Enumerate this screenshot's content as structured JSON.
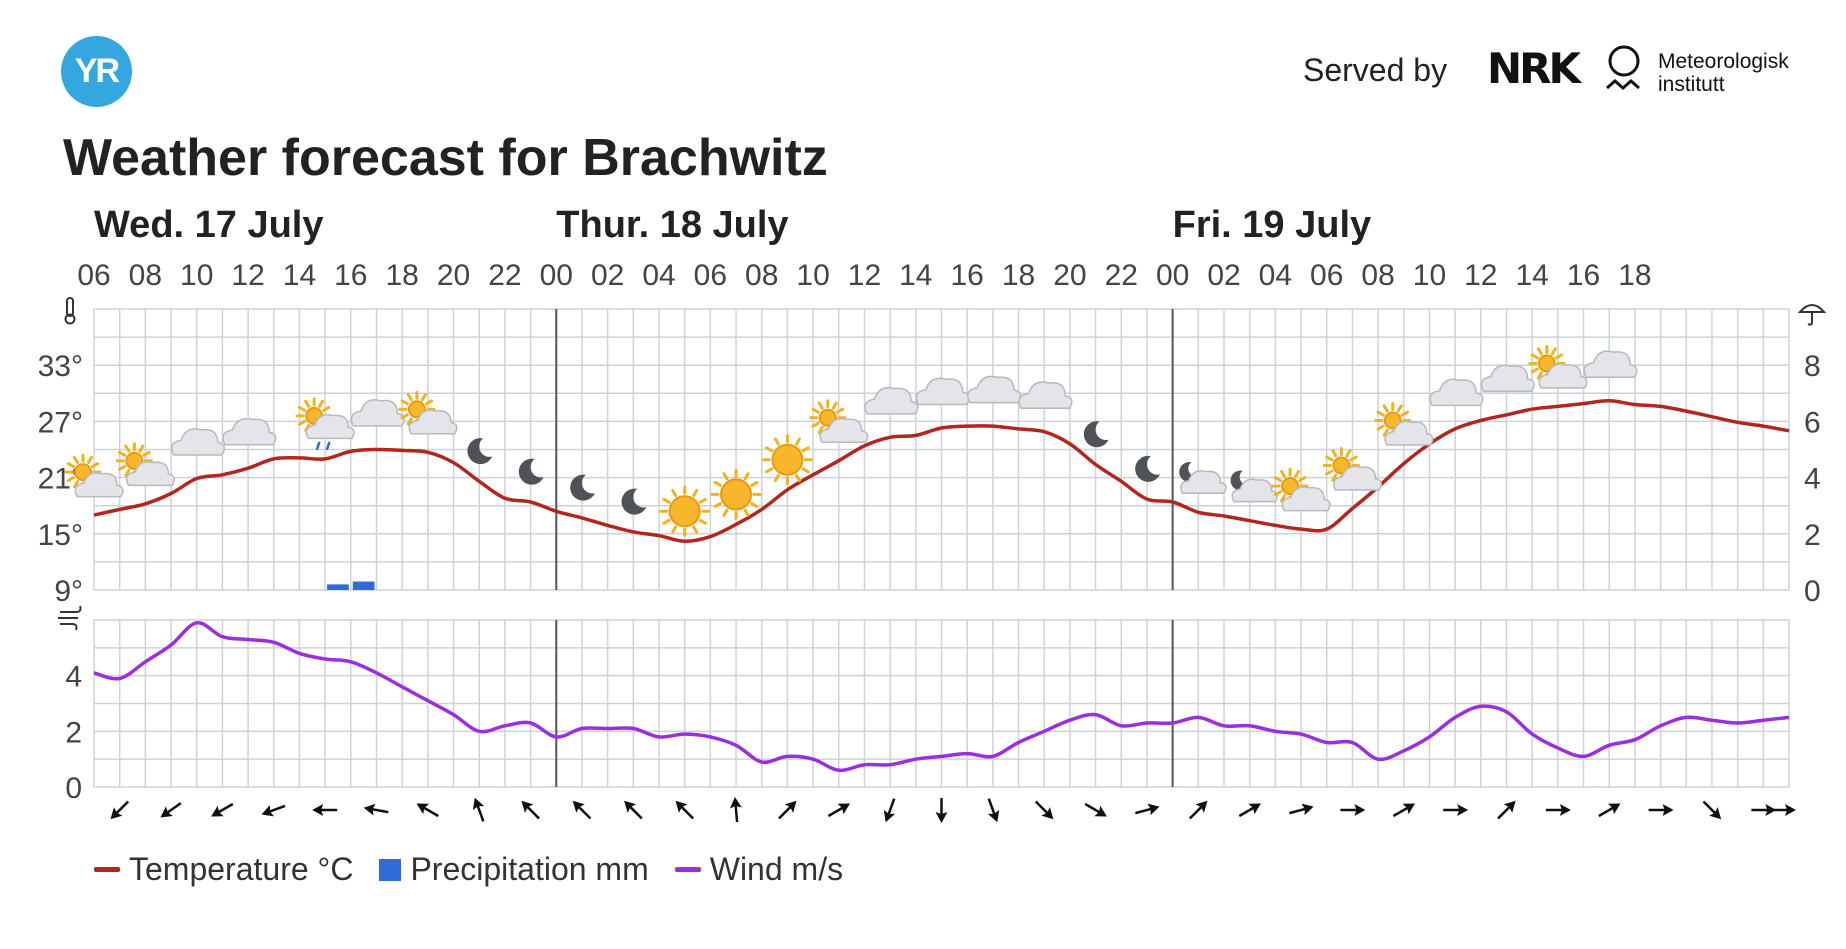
{
  "header": {
    "logo_text": "YR",
    "served_by": "Served by",
    "nrk": "NRK",
    "met_line1": "Meteorologisk",
    "met_line2": "institutt"
  },
  "title": "Weather forecast for Brachwitz",
  "legend": {
    "temperature": "Temperature °C",
    "precipitation": "Precipitation mm",
    "wind": "Wind m/s"
  },
  "colors": {
    "temperature": "#b3261e",
    "precipitation": "#2f6bd8",
    "wind": "#9a2ee0",
    "grid": "#cdd2da",
    "day_divider": "#555555",
    "logo": "#35a7e0"
  },
  "chart_data": {
    "type": "line",
    "days": [
      "Wed. 17 July",
      "Thur. 18 July",
      "Fri. 19 July"
    ],
    "hour_labels": [
      "06",
      "08",
      "10",
      "12",
      "14",
      "16",
      "18",
      "20",
      "22",
      "00",
      "02",
      "04",
      "06",
      "08",
      "10",
      "12",
      "14",
      "16",
      "18",
      "20",
      "22",
      "00",
      "02",
      "04",
      "06",
      "08",
      "10",
      "12",
      "14",
      "16",
      "18"
    ],
    "temp_axis": {
      "ticks": [
        "9°",
        "15°",
        "21°",
        "27°",
        "33°"
      ],
      "ylim": [
        9,
        39
      ]
    },
    "precip_axis": {
      "ticks": [
        "0",
        "2",
        "4",
        "6",
        "8"
      ],
      "ylim": [
        0,
        10
      ]
    },
    "wind_axis": {
      "ticks": [
        "0",
        "2",
        "4"
      ],
      "ylim": [
        0,
        6
      ]
    },
    "series": [
      {
        "name": "Temperature °C",
        "unit": "°C",
        "hours": [
          6,
          7,
          8,
          9,
          10,
          11,
          12,
          13,
          14,
          15,
          16,
          17,
          18,
          19,
          20,
          21,
          22,
          23,
          24,
          25,
          26,
          27,
          28,
          29,
          30,
          31,
          32,
          33,
          34,
          35,
          36,
          37,
          38,
          39,
          40,
          41,
          42,
          43,
          44,
          45,
          46,
          47,
          48,
          49,
          50,
          51,
          52,
          53,
          54,
          55,
          56,
          57,
          58,
          59,
          60,
          61,
          62,
          63,
          64,
          65,
          66,
          67,
          68,
          69,
          70,
          71,
          72
        ],
        "values": [
          17.0,
          17.6,
          18.2,
          19.3,
          20.9,
          21.3,
          22.0,
          23.0,
          23.1,
          23.0,
          23.8,
          24.0,
          23.9,
          23.7,
          22.6,
          20.6,
          18.8,
          18.4,
          17.4,
          16.7,
          15.9,
          15.2,
          14.8,
          14.2,
          14.7,
          16.0,
          17.6,
          19.7,
          21.3,
          22.8,
          24.4,
          25.3,
          25.5,
          26.3,
          26.5,
          26.5,
          26.2,
          25.9,
          24.6,
          22.4,
          20.6,
          18.7,
          18.4,
          17.3,
          16.9,
          16.4,
          15.9,
          15.5,
          15.5,
          17.7,
          20.0,
          22.5,
          24.6,
          26.2,
          27.1,
          27.7,
          28.3,
          28.6,
          28.9,
          29.2,
          28.8,
          28.6,
          28.1,
          27.5,
          26.9,
          26.5,
          26.0
        ]
      },
      {
        "name": "Precipitation mm",
        "unit": "mm",
        "hours": [
          15,
          16
        ],
        "values": [
          0.2,
          0.3
        ]
      },
      {
        "name": "Wind m/s",
        "unit": "m/s",
        "hours": [
          6,
          7,
          8,
          9,
          10,
          11,
          12,
          13,
          14,
          15,
          16,
          17,
          18,
          19,
          20,
          21,
          22,
          23,
          24,
          25,
          26,
          27,
          28,
          29,
          30,
          31,
          32,
          33,
          34,
          35,
          36,
          37,
          38,
          39,
          40,
          41,
          42,
          43,
          44,
          45,
          46,
          47,
          48,
          49,
          50,
          51,
          52,
          53,
          54,
          55,
          56,
          57,
          58,
          59,
          60,
          61,
          62,
          63,
          64,
          65,
          66,
          67,
          68,
          69,
          70,
          71,
          72
        ],
        "values": [
          4.1,
          3.9,
          4.5,
          5.1,
          5.9,
          5.4,
          5.3,
          5.2,
          4.8,
          4.6,
          4.5,
          4.1,
          3.6,
          3.1,
          2.6,
          2.0,
          2.2,
          2.3,
          1.8,
          2.1,
          2.1,
          2.1,
          1.8,
          1.9,
          1.8,
          1.5,
          0.9,
          1.1,
          1.0,
          0.6,
          0.8,
          0.8,
          1.0,
          1.1,
          1.2,
          1.1,
          1.6,
          2.0,
          2.4,
          2.6,
          2.2,
          2.3,
          2.3,
          2.5,
          2.2,
          2.2,
          2.0,
          1.9,
          1.6,
          1.6,
          1.0,
          1.3,
          1.8,
          2.5,
          2.9,
          2.7,
          1.9,
          1.4,
          1.1,
          1.5,
          1.7,
          2.2,
          2.5,
          2.4,
          2.3,
          2.4,
          2.5
        ]
      }
    ],
    "weather_symbols": [
      {
        "hour": 6,
        "icon": "partly-cloudy-day-icon"
      },
      {
        "hour": 8,
        "icon": "partly-cloudy-day-icon"
      },
      {
        "hour": 10,
        "icon": "cloudy-icon"
      },
      {
        "hour": 12,
        "icon": "cloudy-icon"
      },
      {
        "hour": 15,
        "icon": "rain-showers-day-icon"
      },
      {
        "hour": 17,
        "icon": "cloudy-icon"
      },
      {
        "hour": 19,
        "icon": "partly-cloudy-day-icon"
      },
      {
        "hour": 21,
        "icon": "clear-night-icon"
      },
      {
        "hour": 23,
        "icon": "clear-night-icon"
      },
      {
        "hour": 25,
        "icon": "clear-night-icon"
      },
      {
        "hour": 27,
        "icon": "clear-night-icon"
      },
      {
        "hour": 29,
        "icon": "clear-day-icon"
      },
      {
        "hour": 31,
        "icon": "clear-day-icon"
      },
      {
        "hour": 33,
        "icon": "clear-day-icon"
      },
      {
        "hour": 35,
        "icon": "partly-cloudy-day-icon"
      },
      {
        "hour": 37,
        "icon": "cloudy-icon"
      },
      {
        "hour": 39,
        "icon": "cloudy-icon"
      },
      {
        "hour": 41,
        "icon": "cloudy-icon"
      },
      {
        "hour": 43,
        "icon": "cloudy-icon"
      },
      {
        "hour": 45,
        "icon": "clear-night-icon"
      },
      {
        "hour": 47,
        "icon": "clear-night-icon"
      },
      {
        "hour": 49,
        "icon": "partly-cloudy-night-icon"
      },
      {
        "hour": 51,
        "icon": "partly-cloudy-night-icon"
      },
      {
        "hour": 53,
        "icon": "partly-cloudy-day-icon"
      },
      {
        "hour": 55,
        "icon": "partly-cloudy-day-icon"
      },
      {
        "hour": 57,
        "icon": "partly-cloudy-day-icon"
      },
      {
        "hour": 59,
        "icon": "cloudy-icon"
      },
      {
        "hour": 61,
        "icon": "cloudy-icon"
      },
      {
        "hour": 63,
        "icon": "partly-cloudy-day-icon"
      },
      {
        "hour": 65,
        "icon": "cloudy-icon"
      }
    ],
    "wind_directions_deg": [
      225,
      235,
      240,
      250,
      270,
      280,
      300,
      340,
      315,
      315,
      315,
      315,
      355,
      45,
      60,
      200,
      180,
      160,
      135,
      120,
      75,
      45,
      60,
      75,
      90,
      60,
      90,
      45,
      90,
      60,
      90,
      135,
      90,
      90
    ]
  }
}
